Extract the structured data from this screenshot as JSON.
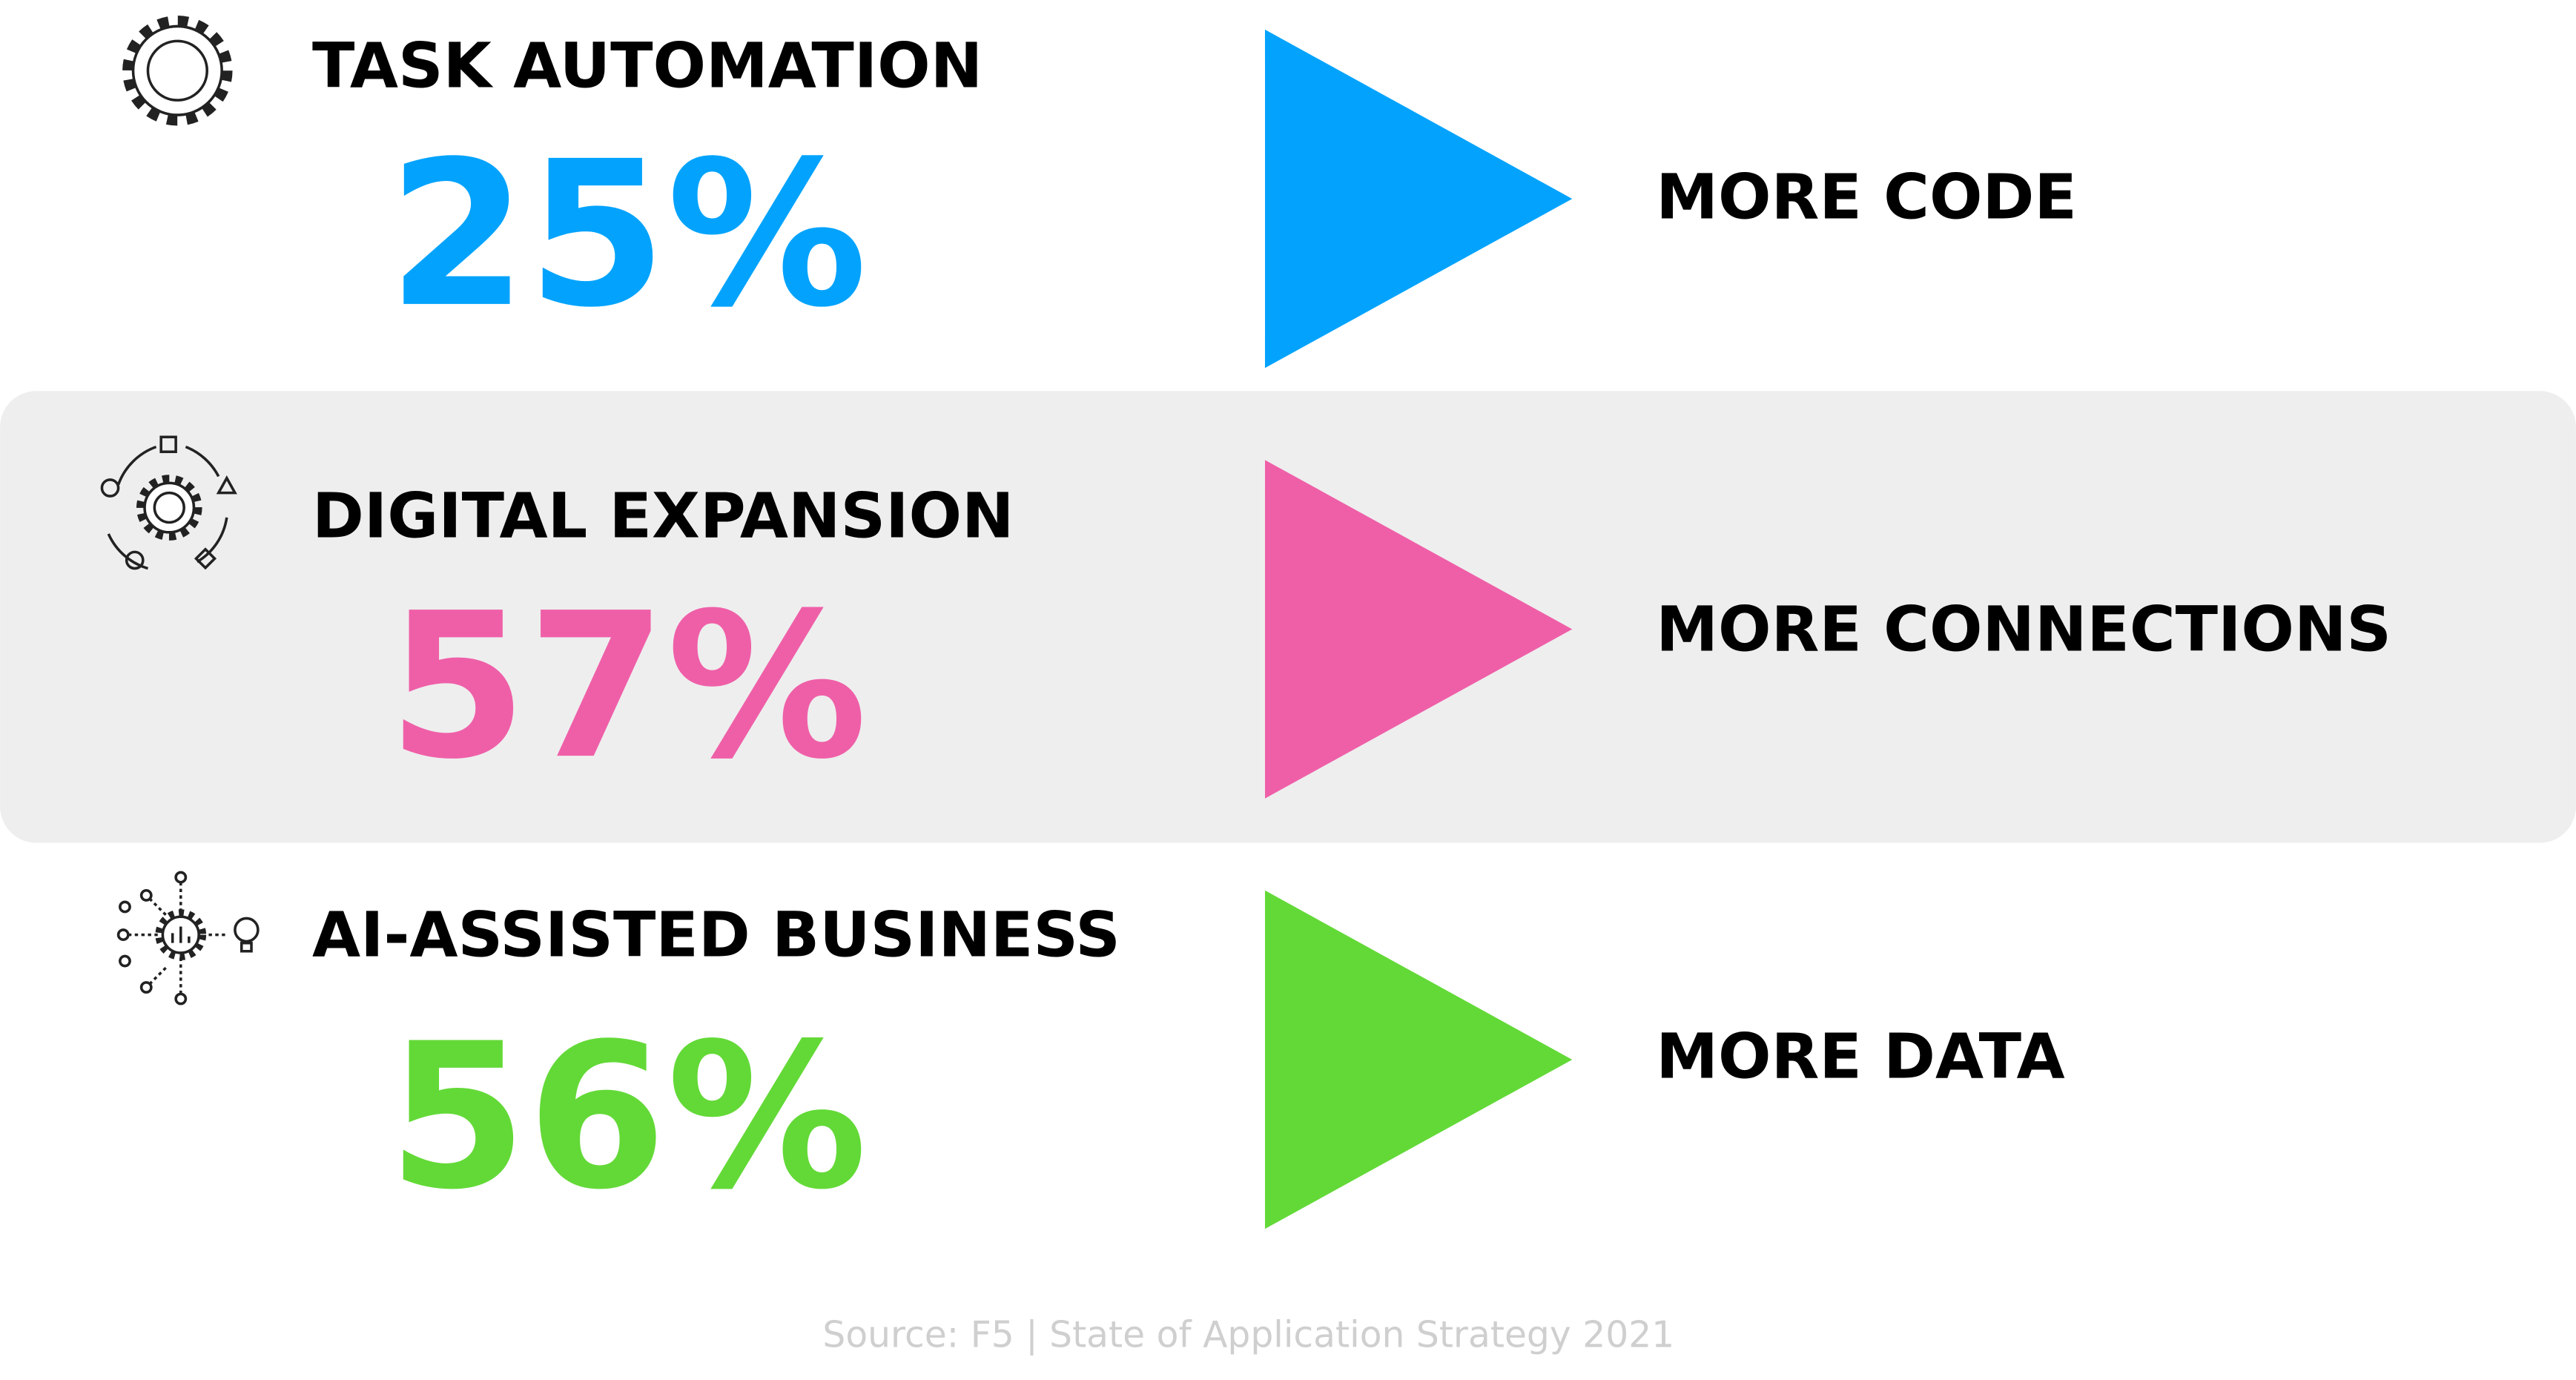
{
  "rows": [
    {
      "title": "TASK AUTOMATION",
      "value": "25%",
      "effect": "MORE CODE",
      "color": "#03a3fd"
    },
    {
      "title": "DIGITAL EXPANSION",
      "value": "57%",
      "effect": "MORE CONNECTIONS",
      "color": "#ef5fa8"
    },
    {
      "title": "AI-ASSISTED BUSINESS",
      "value": "56%",
      "effect": "MORE DATA",
      "color": "#63d937"
    }
  ],
  "source": "Source: F5 | State of Application Strategy 2021"
}
